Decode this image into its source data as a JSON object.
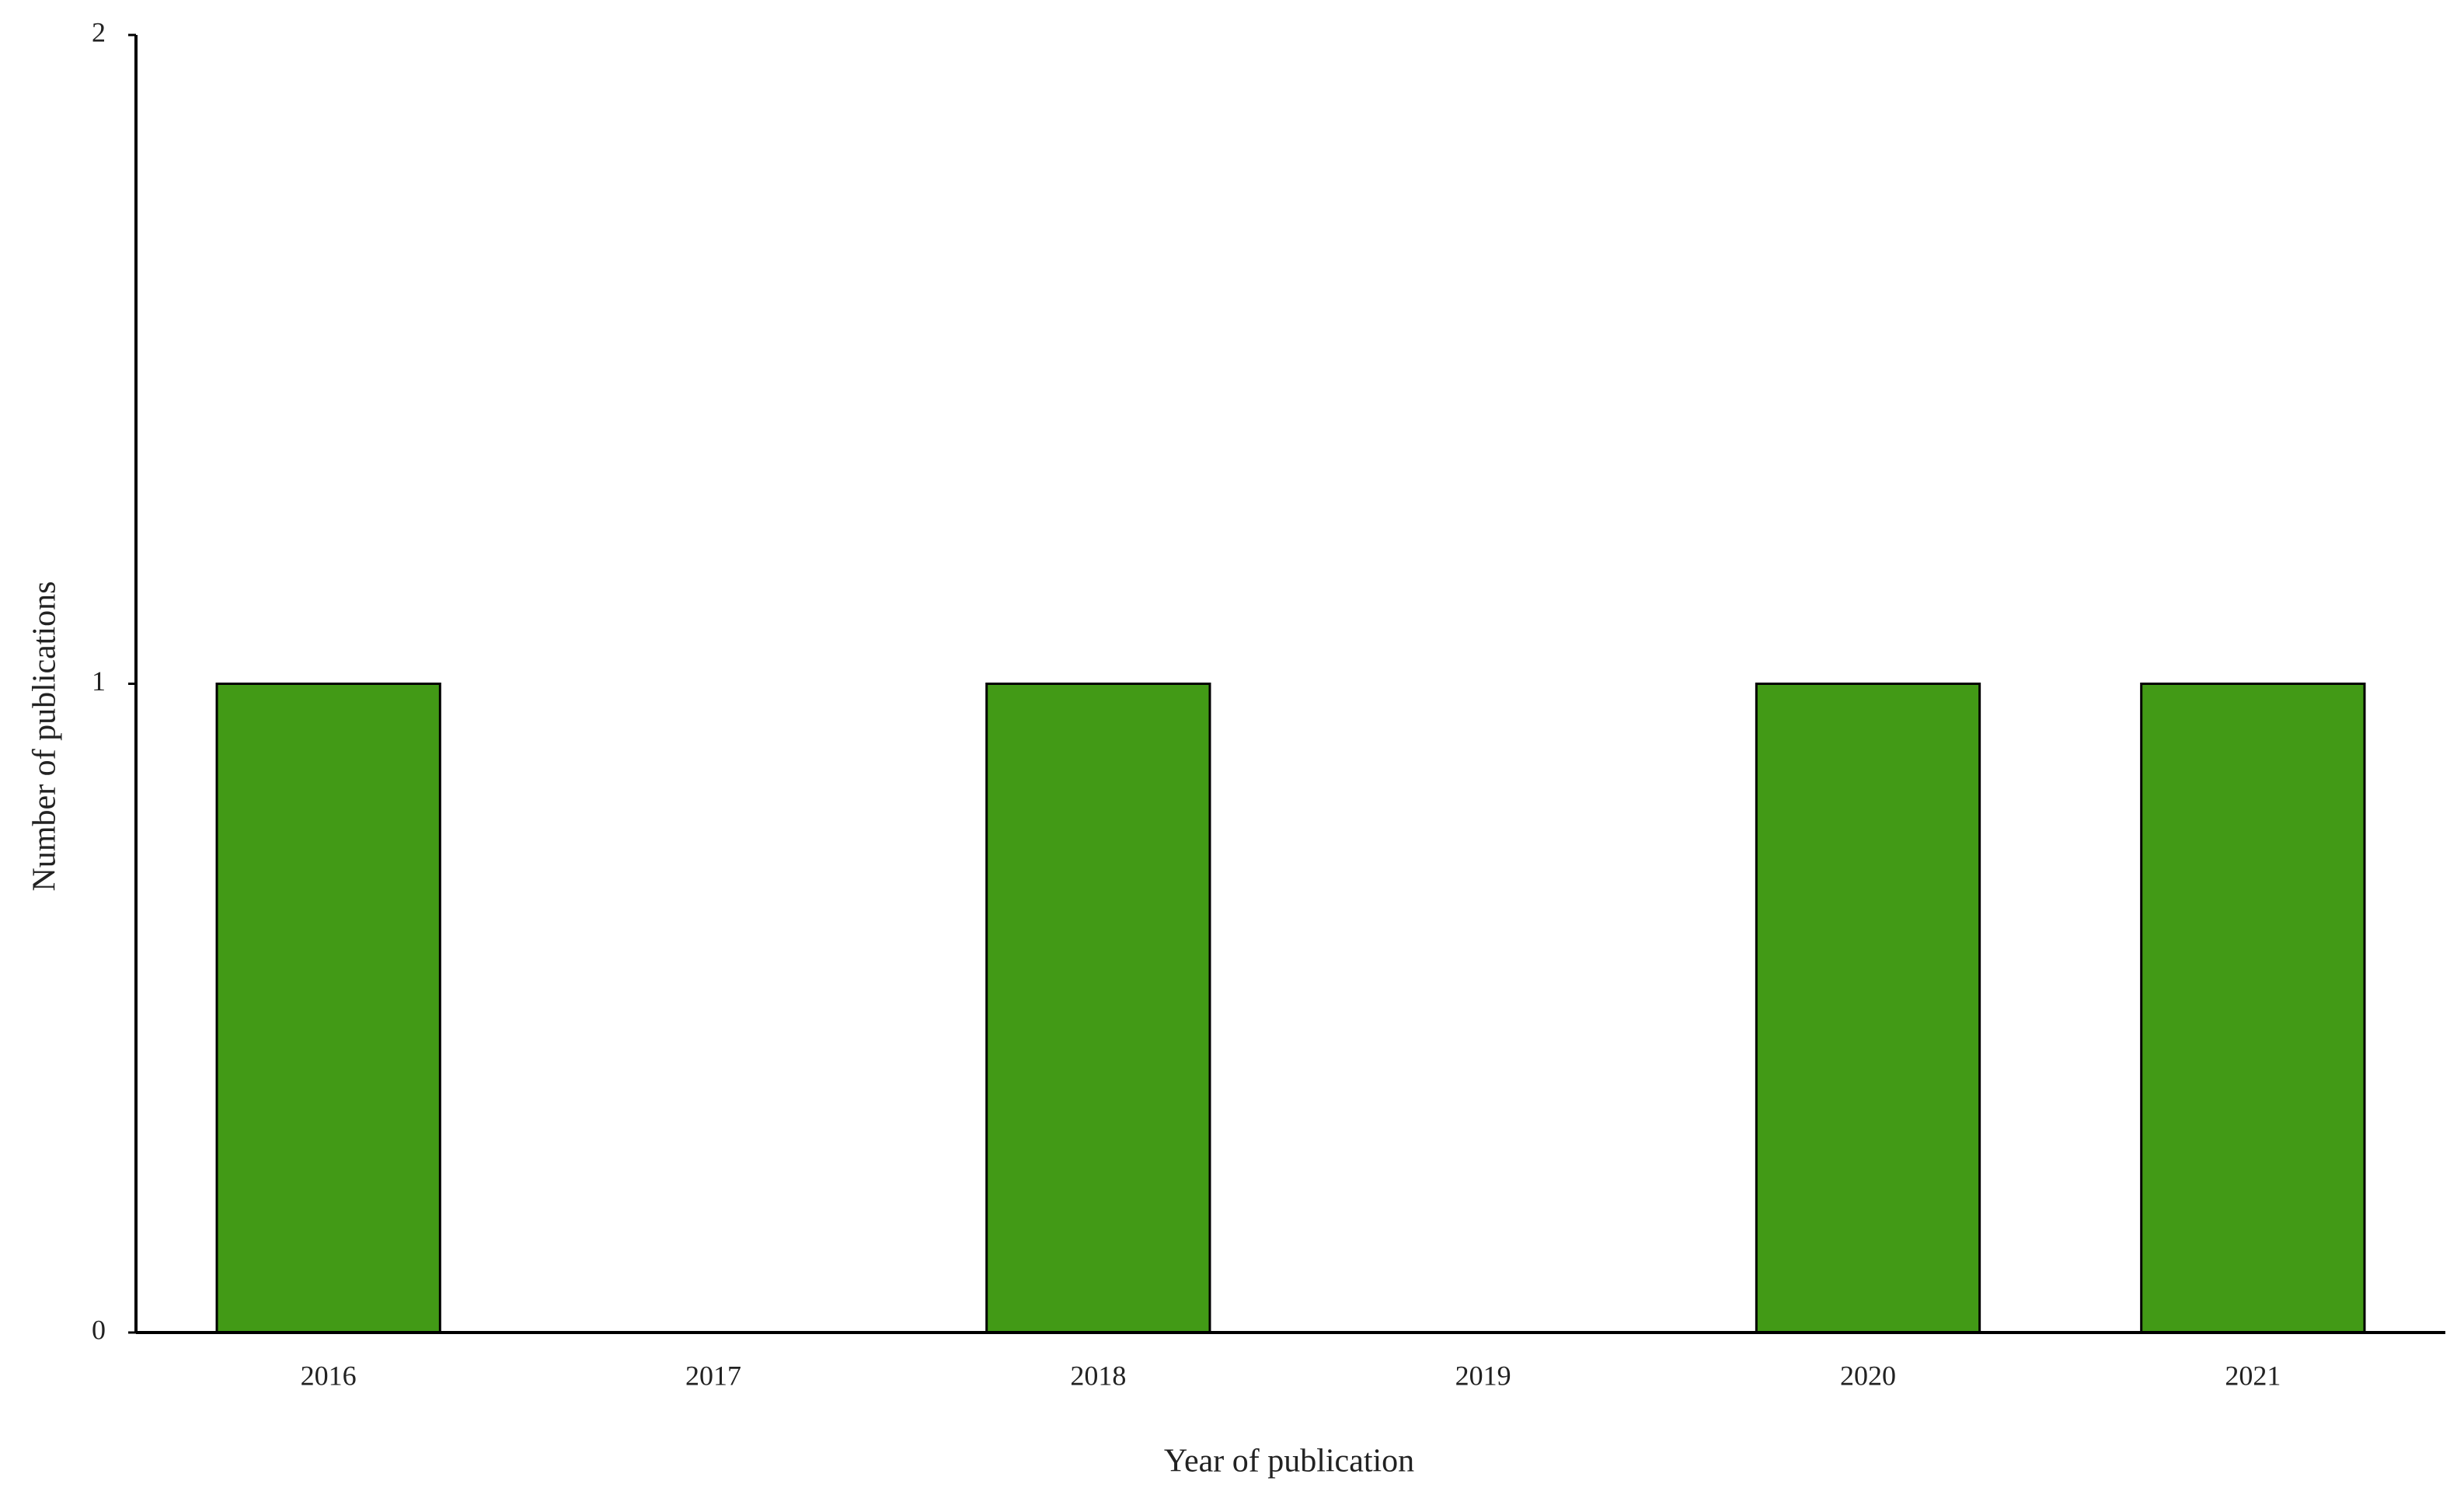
{
  "chart_data": {
    "type": "bar",
    "x_label": "Year of publication",
    "y_label": "Number of publications",
    "categories": [
      "2016",
      "2017",
      "2018",
      "2019",
      "2020",
      "2021"
    ],
    "values": [
      1,
      0,
      1,
      0,
      1,
      1
    ],
    "color": "#429a16",
    "ylim": [
      0,
      2
    ],
    "yticks": [
      0,
      1,
      2
    ],
    "grid": false
  }
}
